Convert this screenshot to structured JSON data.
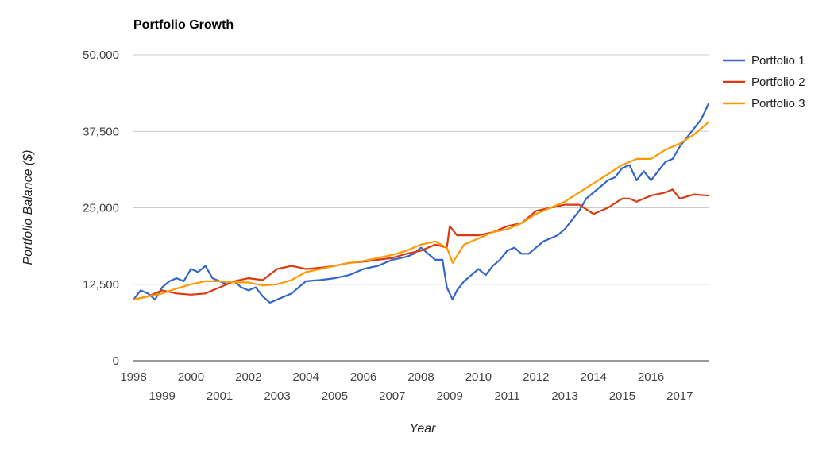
{
  "chart_data": {
    "type": "line",
    "title": "Portfolio Growth",
    "xlabel": "Year",
    "ylabel": "Portfolio Balance ($)",
    "ylim": [
      0,
      50000
    ],
    "xlim": [
      1998,
      2018
    ],
    "y_ticks": [
      {
        "value": 0,
        "label": "0"
      },
      {
        "value": 12500,
        "label": "12,500"
      },
      {
        "value": 25000,
        "label": "25,000"
      },
      {
        "value": 37500,
        "label": "37,500"
      },
      {
        "value": 50000,
        "label": "50,000"
      }
    ],
    "x_ticks": [
      {
        "value": 1998,
        "label": "1998"
      },
      {
        "value": 1999,
        "label": "1999"
      },
      {
        "value": 2000,
        "label": "2000"
      },
      {
        "value": 2001,
        "label": "2001"
      },
      {
        "value": 2002,
        "label": "2002"
      },
      {
        "value": 2003,
        "label": "2003"
      },
      {
        "value": 2004,
        "label": "2004"
      },
      {
        "value": 2005,
        "label": "2005"
      },
      {
        "value": 2006,
        "label": "2006"
      },
      {
        "value": 2007,
        "label": "2007"
      },
      {
        "value": 2008,
        "label": "2008"
      },
      {
        "value": 2009,
        "label": "2009"
      },
      {
        "value": 2010,
        "label": "2010"
      },
      {
        "value": 2011,
        "label": "2011"
      },
      {
        "value": 2012,
        "label": "2012"
      },
      {
        "value": 2013,
        "label": "2013"
      },
      {
        "value": 2014,
        "label": "2014"
      },
      {
        "value": 2015,
        "label": "2015"
      },
      {
        "value": 2016,
        "label": "2016"
      },
      {
        "value": 2017,
        "label": "2017"
      }
    ],
    "grid": true,
    "legend_position": "right",
    "series": [
      {
        "name": "Portfolio 1",
        "color": "#3366cc",
        "x": [
          1998.0,
          1998.25,
          1998.5,
          1998.75,
          1999.0,
          1999.25,
          1999.5,
          1999.75,
          2000.0,
          2000.25,
          2000.5,
          2000.75,
          2001.0,
          2001.25,
          2001.5,
          2001.75,
          2002.0,
          2002.25,
          2002.5,
          2002.75,
          2003.0,
          2003.25,
          2003.5,
          2003.75,
          2004.0,
          2004.5,
          2005.0,
          2005.5,
          2006.0,
          2006.5,
          2007.0,
          2007.5,
          2007.75,
          2008.0,
          2008.25,
          2008.5,
          2008.75,
          2008.9,
          2009.1,
          2009.25,
          2009.5,
          2009.75,
          2010.0,
          2010.25,
          2010.5,
          2010.75,
          2011.0,
          2011.25,
          2011.5,
          2011.75,
          2012.0,
          2012.25,
          2012.5,
          2012.75,
          2013.0,
          2013.25,
          2013.5,
          2013.75,
          2014.0,
          2014.25,
          2014.5,
          2014.75,
          2015.0,
          2015.25,
          2015.5,
          2015.75,
          2016.0,
          2016.25,
          2016.5,
          2016.75,
          2017.0,
          2017.25,
          2017.5,
          2017.75,
          2018.0
        ],
        "y": [
          10000,
          11500,
          11000,
          10000,
          12000,
          13000,
          13500,
          13000,
          15000,
          14500,
          15500,
          13500,
          13000,
          12500,
          13000,
          12000,
          11500,
          12000,
          10500,
          9500,
          10000,
          10500,
          11000,
          12000,
          13000,
          13200,
          13500,
          14000,
          15000,
          15500,
          16500,
          17000,
          17500,
          18500,
          17500,
          16500,
          16500,
          12000,
          10000,
          11500,
          13000,
          14000,
          15000,
          14000,
          15500,
          16500,
          18000,
          18500,
          17500,
          17500,
          18500,
          19500,
          20000,
          20500,
          21500,
          23000,
          24500,
          26500,
          27500,
          28500,
          29500,
          30000,
          31500,
          32000,
          29500,
          31000,
          29500,
          31000,
          32500,
          33000,
          35000,
          36500,
          38000,
          39500,
          42000
        ]
      },
      {
        "name": "Portfolio 2",
        "color": "#dc3912",
        "x": [
          1998.0,
          1998.5,
          1999.0,
          1999.5,
          2000.0,
          2000.5,
          2001.0,
          2001.5,
          2002.0,
          2002.5,
          2003.0,
          2003.5,
          2004.0,
          2004.5,
          2005.0,
          2005.5,
          2006.0,
          2006.5,
          2007.0,
          2007.5,
          2008.0,
          2008.5,
          2008.9,
          2009.0,
          2009.25,
          2009.5,
          2010.0,
          2010.5,
          2011.0,
          2011.5,
          2012.0,
          2012.5,
          2013.0,
          2013.5,
          2014.0,
          2014.5,
          2015.0,
          2015.25,
          2015.5,
          2016.0,
          2016.5,
          2016.75,
          2017.0,
          2017.5,
          2018.0
        ],
        "y": [
          10000,
          10500,
          11500,
          11000,
          10800,
          11000,
          12000,
          13000,
          13500,
          13200,
          15000,
          15500,
          15000,
          15200,
          15500,
          16000,
          16200,
          16500,
          16800,
          17500,
          18000,
          19000,
          18500,
          22000,
          20500,
          20500,
          20500,
          21000,
          22000,
          22500,
          24500,
          25000,
          25500,
          25500,
          24000,
          25000,
          26500,
          26500,
          26000,
          27000,
          27500,
          28000,
          26500,
          27200,
          27000
        ]
      },
      {
        "name": "Portfolio 3",
        "color": "#ff9900",
        "x": [
          1998.0,
          1998.5,
          1999.0,
          1999.5,
          2000.0,
          2000.5,
          2001.0,
          2001.5,
          2002.0,
          2002.5,
          2003.0,
          2003.5,
          2004.0,
          2004.5,
          2005.0,
          2005.5,
          2006.0,
          2006.5,
          2007.0,
          2007.5,
          2008.0,
          2008.5,
          2008.9,
          2009.1,
          2009.5,
          2010.0,
          2010.5,
          2011.0,
          2011.5,
          2012.0,
          2012.5,
          2013.0,
          2013.5,
          2014.0,
          2014.5,
          2015.0,
          2015.5,
          2016.0,
          2016.5,
          2016.75,
          2017.0,
          2017.5,
          2018.0
        ],
        "y": [
          10000,
          10500,
          11000,
          11800,
          12500,
          13000,
          13000,
          12800,
          12800,
          12300,
          12500,
          13200,
          14500,
          15000,
          15500,
          16000,
          16300,
          16800,
          17300,
          18000,
          19000,
          19500,
          18500,
          16000,
          19000,
          20000,
          21000,
          21500,
          22500,
          24000,
          25000,
          26000,
          27500,
          29000,
          30500,
          32000,
          33000,
          33000,
          34500,
          35000,
          35500,
          37000,
          39000
        ]
      }
    ]
  }
}
